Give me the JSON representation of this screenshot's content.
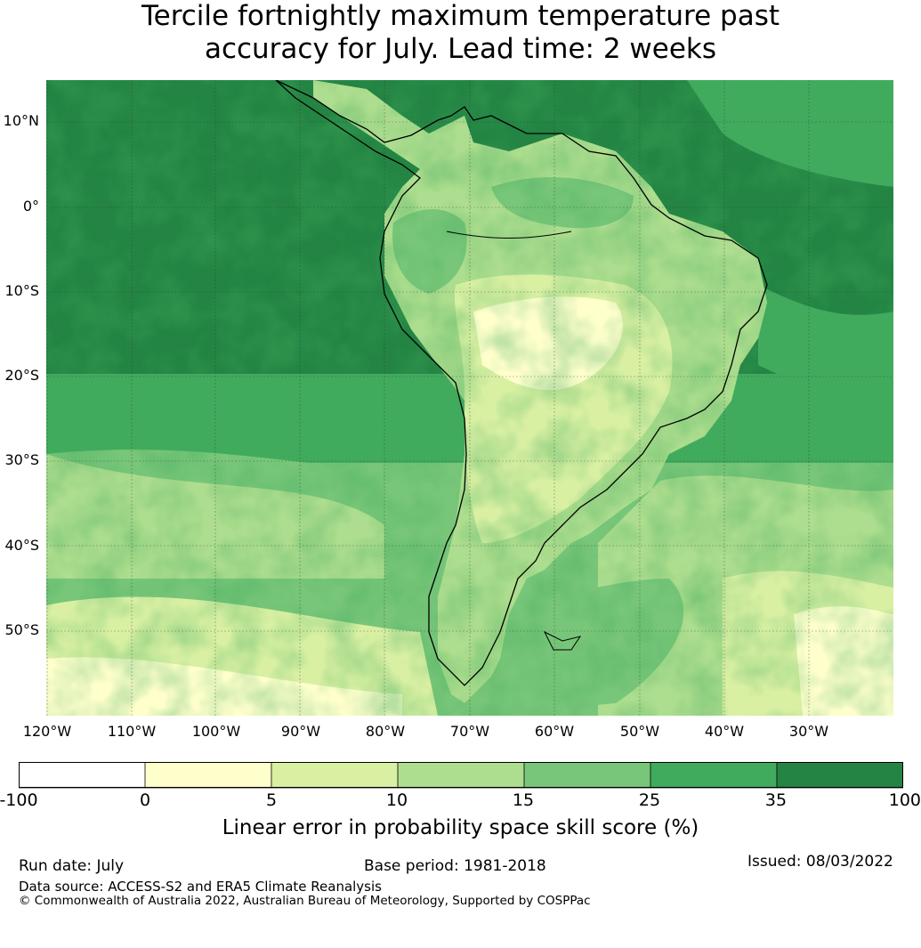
{
  "title": {
    "line1": "Tercile fortnightly maximum temperature past",
    "line2": "accuracy for July. Lead time: 2 weeks"
  },
  "map": {
    "region": "South America",
    "lat_labels": [
      "10°N",
      "0°",
      "10°S",
      "20°S",
      "30°S",
      "40°S",
      "50°S"
    ],
    "lon_labels": [
      "120°W",
      "110°W",
      "100°W",
      "90°W",
      "80°W",
      "70°W",
      "60°W",
      "50°W",
      "40°W",
      "30°W"
    ]
  },
  "colorbar": {
    "ticks": [
      "-100",
      "0",
      "5",
      "10",
      "15",
      "25",
      "35",
      "100"
    ],
    "colors": [
      "#ffffff",
      "#ffffcc",
      "#d9f0a3",
      "#addd8e",
      "#78c679",
      "#41ab5d",
      "#238443"
    ],
    "label": "Linear error in probability space skill score (%)"
  },
  "footer": {
    "run_date": "Run date: July",
    "base_period": "Base period: 1981-2018",
    "issued": "Issued: 08/03/2022",
    "data_source": "Data source: ACCESS-S2 and ERA5 Climate Reanalysis",
    "copyright": "© Commonwealth of Australia 2022, Australian Bureau of Meteorology, Supported by COSPPac"
  }
}
